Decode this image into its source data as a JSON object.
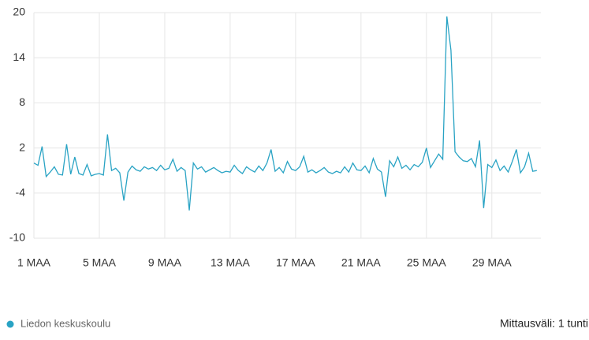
{
  "chart_data": {
    "type": "line",
    "categories": [
      "1 MAA",
      null,
      null,
      null,
      null,
      null,
      null,
      null,
      null,
      null,
      null,
      null,
      null,
      null,
      null,
      null,
      "5 MAA",
      null,
      null,
      null,
      null,
      null,
      null,
      null,
      null,
      null,
      null,
      null,
      null,
      null,
      null,
      null,
      "9 MAA",
      null,
      null,
      null,
      null,
      null,
      null,
      null,
      null,
      null,
      null,
      null,
      null,
      null,
      null,
      null,
      "13 MAA",
      null,
      null,
      null,
      null,
      null,
      null,
      null,
      null,
      null,
      null,
      null,
      null,
      null,
      null,
      null,
      "17 MAA",
      null,
      null,
      null,
      null,
      null,
      null,
      null,
      null,
      null,
      null,
      null,
      null,
      null,
      null,
      null,
      "21 MAA",
      null,
      null,
      null,
      null,
      null,
      null,
      null,
      null,
      null,
      null,
      null,
      null,
      null,
      null,
      null,
      "25 MAA",
      null,
      null,
      null,
      null,
      null,
      null,
      null,
      null,
      null,
      null,
      null,
      null,
      null,
      null,
      null,
      "29 MAA",
      null,
      null,
      null,
      null,
      null,
      null,
      null,
      null,
      null,
      null,
      null
    ],
    "series": [
      {
        "name": "Liedon keskuskoulu",
        "color": "#29a3c4",
        "values": [
          0,
          -0.3,
          2.2,
          -1.8,
          -1.2,
          -0.5,
          -1.5,
          -1.6,
          2.5,
          -1.5,
          0.8,
          -1.4,
          -1.6,
          -0.2,
          -1.7,
          -1.5,
          -1.4,
          -1.6,
          3.8,
          -1.0,
          -0.7,
          -1.3,
          -5.0,
          -1.2,
          -0.4,
          -0.9,
          -1.1,
          -0.5,
          -0.8,
          -0.6,
          -1.0,
          -0.3,
          -0.9,
          -0.7,
          0.5,
          -1.1,
          -0.6,
          -1.0,
          -6.3,
          0.0,
          -0.8,
          -0.5,
          -1.2,
          -0.9,
          -0.6,
          -1.0,
          -1.3,
          -1.1,
          -1.2,
          -0.3,
          -1.0,
          -1.4,
          -0.5,
          -0.9,
          -1.2,
          -0.4,
          -1.0,
          0.0,
          1.8,
          -1.1,
          -0.6,
          -1.3,
          0.2,
          -0.8,
          -1.0,
          -0.5,
          0.9,
          -1.2,
          -0.9,
          -1.3,
          -1.0,
          -0.6,
          -1.2,
          -1.4,
          -1.1,
          -1.3,
          -0.5,
          -1.2,
          0.0,
          -0.9,
          -1.0,
          -0.4,
          -1.3,
          0.6,
          -0.8,
          -1.2,
          -4.5,
          0.3,
          -0.5,
          0.8,
          -0.7,
          -0.3,
          -0.9,
          -0.2,
          -0.5,
          0.1,
          2.0,
          -0.6,
          0.3,
          1.2,
          0.5,
          19.5,
          15.0,
          1.5,
          0.8,
          0.3,
          0.2,
          0.6,
          -0.5,
          3.0,
          -6.0,
          -0.2,
          -0.6,
          0.4,
          -1.0,
          -0.4,
          -1.2,
          0.2,
          1.8,
          -1.3,
          -0.5,
          1.3,
          -1.1,
          -1.0
        ]
      }
    ],
    "ylim": [
      -10,
      20
    ],
    "yticks": [
      -10,
      -4,
      2,
      8,
      14,
      20
    ],
    "grid": true,
    "legend": "bottom-left",
    "footer_note": "Mittausväli: 1 tunti"
  }
}
